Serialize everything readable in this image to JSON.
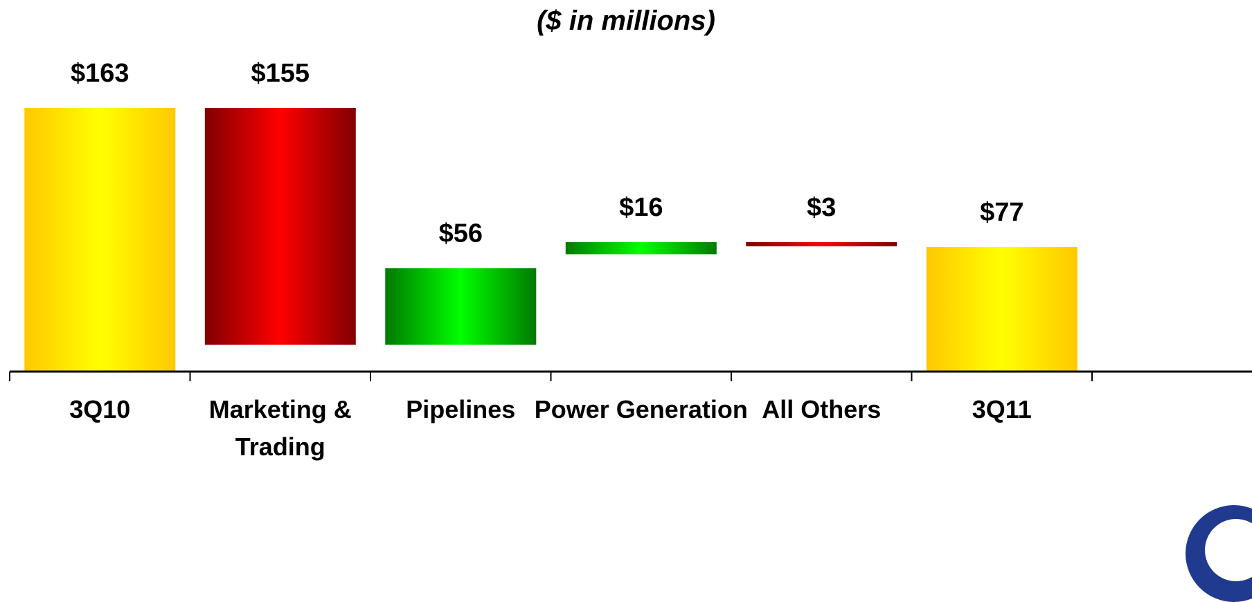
{
  "chart_data": {
    "type": "bar",
    "subtitle": "($ in millions)",
    "categories": [
      "3Q10",
      "Marketing & Trading",
      "Pipelines",
      "Power Generation",
      "All Others",
      "3Q11"
    ],
    "category_lines": [
      [
        "3Q10"
      ],
      [
        "Marketing &",
        "Trading"
      ],
      [
        "Pipelines"
      ],
      [
        "Power Generation"
      ],
      [
        "All Others"
      ],
      [
        "3Q11"
      ]
    ],
    "values": [
      163,
      -155,
      56,
      16,
      -3,
      77
    ],
    "data_labels": [
      "$163",
      "$155",
      "$56",
      "$16",
      "$3",
      "$77"
    ],
    "bar_kind": [
      "total",
      "decrease",
      "increase",
      "increase",
      "decrease",
      "total"
    ],
    "ylim": [
      0,
      170
    ],
    "colors": {
      "total": [
        "#ffc800",
        "#ffff00"
      ],
      "decrease": [
        "#800000",
        "#ff0000"
      ],
      "increase": [
        "#007a00",
        "#00ff00"
      ]
    },
    "logo": "company-logo"
  }
}
